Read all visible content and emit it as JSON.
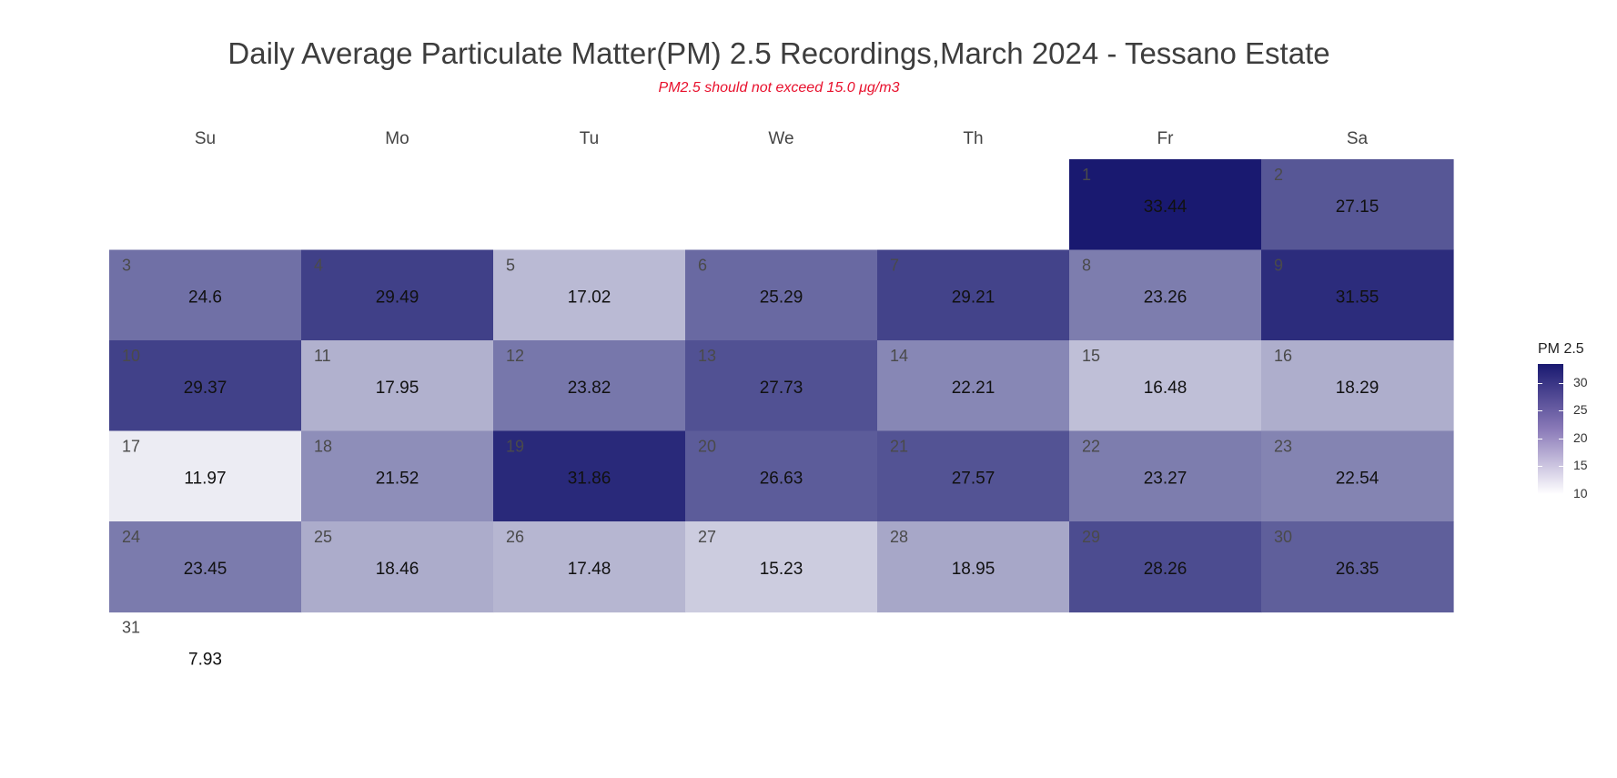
{
  "chart_data": {
    "type": "heatmap",
    "title": "Daily Average Particulate Matter(PM) 2.5 Recordings,March 2024 - Tessano Estate",
    "subtitle": "PM2.5 should not exceed 15.0 μg/m3",
    "weekdays": [
      "Su",
      "Mo",
      "Tu",
      "We",
      "Th",
      "Fr",
      "Sa"
    ],
    "first_weekday_index": 5,
    "days": [
      {
        "day": 1,
        "value": 33.44
      },
      {
        "day": 2,
        "value": 27.15
      },
      {
        "day": 3,
        "value": 24.6
      },
      {
        "day": 4,
        "value": 29.49
      },
      {
        "day": 5,
        "value": 17.02
      },
      {
        "day": 6,
        "value": 25.29
      },
      {
        "day": 7,
        "value": 29.21
      },
      {
        "day": 8,
        "value": 23.26
      },
      {
        "day": 9,
        "value": 31.55
      },
      {
        "day": 10,
        "value": 29.37
      },
      {
        "day": 11,
        "value": 17.95
      },
      {
        "day": 12,
        "value": 23.82
      },
      {
        "day": 13,
        "value": 27.73
      },
      {
        "day": 14,
        "value": 22.21
      },
      {
        "day": 15,
        "value": 16.48
      },
      {
        "day": 16,
        "value": 18.29
      },
      {
        "day": 17,
        "value": 11.97
      },
      {
        "day": 18,
        "value": 21.52
      },
      {
        "day": 19,
        "value": 31.86
      },
      {
        "day": 20,
        "value": 26.63
      },
      {
        "day": 21,
        "value": 27.57
      },
      {
        "day": 22,
        "value": 23.27
      },
      {
        "day": 23,
        "value": 22.54
      },
      {
        "day": 24,
        "value": 23.45
      },
      {
        "day": 25,
        "value": 18.46
      },
      {
        "day": 26,
        "value": 17.48
      },
      {
        "day": 27,
        "value": 15.23
      },
      {
        "day": 28,
        "value": 18.95
      },
      {
        "day": 29,
        "value": 28.26
      },
      {
        "day": 30,
        "value": 26.35
      },
      {
        "day": 31,
        "value": 7.93
      }
    ],
    "color_scale": {
      "title": "PM 2.5",
      "low": 10,
      "high": 33.44,
      "low_color": "#ffffff",
      "high_color": "#191970",
      "ticks": [
        "10",
        "15",
        "20",
        "25",
        "30"
      ]
    }
  }
}
